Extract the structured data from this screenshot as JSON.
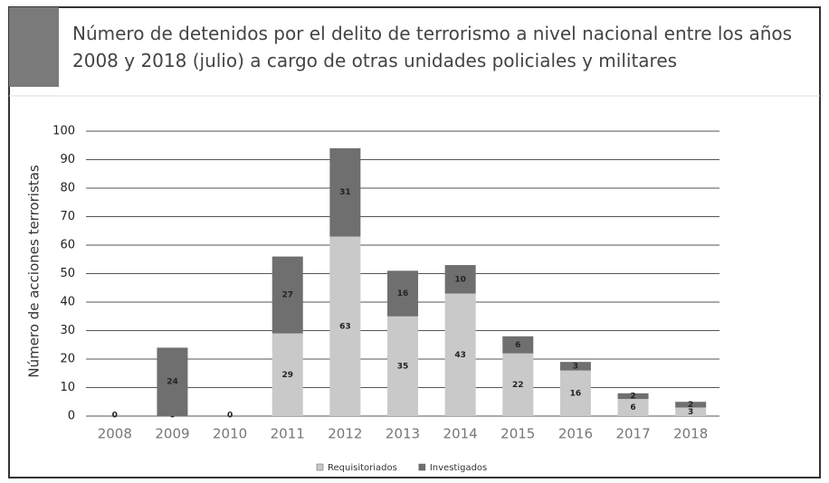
{
  "chart_data": {
    "type": "stacked_bar",
    "title": "Número de detenidos por el delito de terrorismo a nivel nacional entre los años 2008 y 2018 (julio) a cargo de otras unidades policiales y militares",
    "ylabel": "Número de acciones terroristas",
    "categories": [
      "2008",
      "2009",
      "2010",
      "2011",
      "2012",
      "2013",
      "2014",
      "2015",
      "2016",
      "2017",
      "2018"
    ],
    "series": [
      {
        "name": "Requisitoriados",
        "color": "#c9c9c9",
        "values": [
          0,
          0,
          0,
          29,
          63,
          35,
          43,
          22,
          16,
          6,
          3
        ]
      },
      {
        "name": "Investigados",
        "color": "#6f6f6f",
        "values": [
          null,
          24,
          null,
          27,
          31,
          16,
          10,
          6,
          3,
          2,
          2
        ]
      }
    ],
    "ylim": [
      0,
      100
    ],
    "yticks": [
      0,
      10,
      20,
      30,
      40,
      50,
      60,
      70,
      80,
      90,
      100
    ],
    "grid": true,
    "legend": "bottom"
  }
}
